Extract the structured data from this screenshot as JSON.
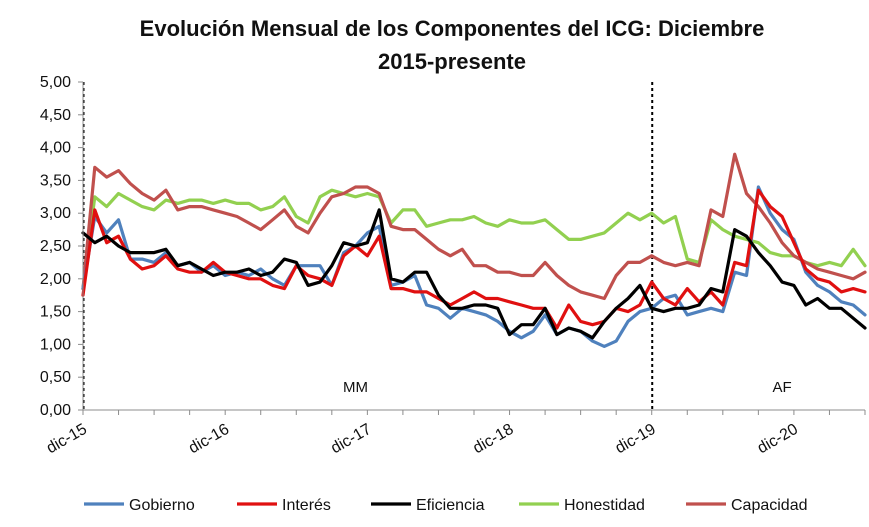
{
  "chart_data": {
    "type": "line",
    "title_line1": "Evolución Mensual de los Componentes del ICG: Diciembre",
    "title_line2": "2015-presente",
    "xlabel": "",
    "ylabel": "",
    "ylim": [
      0,
      5
    ],
    "y_ticks": [
      "0,00",
      "0,50",
      "1,00",
      "1,50",
      "2,00",
      "2,50",
      "3,00",
      "3,50",
      "4,00",
      "4,50",
      "5,00"
    ],
    "x_tick_labels": [
      {
        "label": "dic-15",
        "index": 0
      },
      {
        "label": "dic-16",
        "index": 12
      },
      {
        "label": "dic-17",
        "index": 24
      },
      {
        "label": "dic-18",
        "index": 36
      },
      {
        "label": "dic-19",
        "index": 48
      },
      {
        "label": "dic-20",
        "index": 60
      }
    ],
    "n_points": 67,
    "grid": false,
    "dashed_markers": [
      {
        "index": 0
      },
      {
        "index": 48
      }
    ],
    "period_labels": [
      {
        "text": "MM",
        "index": 23
      },
      {
        "text": "AF",
        "index": 59
      }
    ],
    "legend_position": "bottom",
    "series": [
      {
        "name": "Gobierno",
        "color": "#4f81bd",
        "values": [
          1.85,
          2.95,
          2.7,
          2.9,
          2.3,
          2.3,
          2.25,
          2.4,
          2.2,
          2.25,
          2.1,
          2.2,
          2.05,
          2.1,
          2.05,
          2.15,
          2.0,
          1.9,
          2.2,
          2.2,
          2.2,
          1.9,
          2.4,
          2.5,
          2.7,
          2.8,
          1.9,
          1.95,
          2.05,
          1.6,
          1.55,
          1.4,
          1.55,
          1.5,
          1.45,
          1.35,
          1.2,
          1.1,
          1.2,
          1.45,
          1.15,
          1.25,
          1.2,
          1.05,
          0.97,
          1.05,
          1.35,
          1.5,
          1.55,
          1.7,
          1.75,
          1.45,
          1.5,
          1.55,
          1.5,
          2.1,
          2.05,
          3.4,
          3.0,
          2.75,
          2.6,
          2.1,
          1.9,
          1.8,
          1.65,
          1.6,
          1.45
        ]
      },
      {
        "name": "Interés",
        "color": "#e01010",
        "values": [
          1.75,
          3.05,
          2.55,
          2.65,
          2.3,
          2.15,
          2.2,
          2.35,
          2.15,
          2.1,
          2.1,
          2.25,
          2.1,
          2.05,
          2.0,
          2.0,
          1.9,
          1.85,
          2.2,
          2.05,
          2.0,
          1.9,
          2.35,
          2.5,
          2.35,
          2.65,
          1.85,
          1.85,
          1.8,
          1.8,
          1.7,
          1.6,
          1.7,
          1.8,
          1.7,
          1.7,
          1.65,
          1.6,
          1.55,
          1.55,
          1.25,
          1.6,
          1.35,
          1.3,
          1.35,
          1.55,
          1.5,
          1.6,
          1.95,
          1.7,
          1.6,
          1.85,
          1.65,
          1.8,
          1.6,
          2.25,
          2.2,
          3.35,
          3.1,
          2.95,
          2.55,
          2.15,
          2.0,
          1.95,
          1.8,
          1.85,
          1.8
        ]
      },
      {
        "name": "Eficiencia",
        "color": "#000000",
        "values": [
          2.7,
          2.55,
          2.65,
          2.5,
          2.4,
          2.4,
          2.4,
          2.45,
          2.2,
          2.25,
          2.15,
          2.05,
          2.1,
          2.1,
          2.15,
          2.05,
          2.1,
          2.3,
          2.25,
          1.9,
          1.95,
          2.2,
          2.55,
          2.5,
          2.55,
          3.05,
          2.0,
          1.95,
          2.1,
          2.1,
          1.75,
          1.55,
          1.55,
          1.6,
          1.6,
          1.55,
          1.15,
          1.3,
          1.3,
          1.55,
          1.15,
          1.25,
          1.2,
          1.1,
          1.35,
          1.55,
          1.7,
          1.9,
          1.55,
          1.5,
          1.55,
          1.55,
          1.6,
          1.85,
          1.8,
          2.75,
          2.65,
          2.4,
          2.2,
          1.95,
          1.9,
          1.6,
          1.7,
          1.55,
          1.55,
          1.4,
          1.25
        ]
      },
      {
        "name": "Honestidad",
        "color": "#92d050",
        "values": [
          1.85,
          3.25,
          3.1,
          3.3,
          3.2,
          3.1,
          3.05,
          3.2,
          3.15,
          3.2,
          3.2,
          3.15,
          3.2,
          3.15,
          3.15,
          3.05,
          3.1,
          3.25,
          2.95,
          2.85,
          3.25,
          3.35,
          3.3,
          3.25,
          3.3,
          3.25,
          2.85,
          3.05,
          3.05,
          2.8,
          2.85,
          2.9,
          2.9,
          2.95,
          2.85,
          2.8,
          2.9,
          2.85,
          2.85,
          2.9,
          2.75,
          2.6,
          2.6,
          2.65,
          2.7,
          2.85,
          3.0,
          2.9,
          3.0,
          2.85,
          2.95,
          2.3,
          2.25,
          2.9,
          2.75,
          2.65,
          2.6,
          2.55,
          2.4,
          2.35,
          2.35,
          2.25,
          2.2,
          2.25,
          2.2,
          2.45,
          2.2
        ]
      },
      {
        "name": "Capacidad",
        "color": "#c0504d",
        "values": [
          1.85,
          3.7,
          3.55,
          3.65,
          3.45,
          3.3,
          3.2,
          3.35,
          3.05,
          3.1,
          3.1,
          3.05,
          3.0,
          2.95,
          2.85,
          2.75,
          2.9,
          3.05,
          2.8,
          2.7,
          3.0,
          3.25,
          3.3,
          3.4,
          3.4,
          3.3,
          2.8,
          2.75,
          2.75,
          2.6,
          2.45,
          2.35,
          2.45,
          2.2,
          2.2,
          2.1,
          2.1,
          2.05,
          2.05,
          2.25,
          2.05,
          1.9,
          1.8,
          1.75,
          1.7,
          2.05,
          2.25,
          2.25,
          2.35,
          2.25,
          2.2,
          2.25,
          2.2,
          3.05,
          2.95,
          3.9,
          3.3,
          3.1,
          2.85,
          2.55,
          2.35,
          2.25,
          2.15,
          2.1,
          2.05,
          2.0,
          2.1
        ]
      }
    ]
  }
}
